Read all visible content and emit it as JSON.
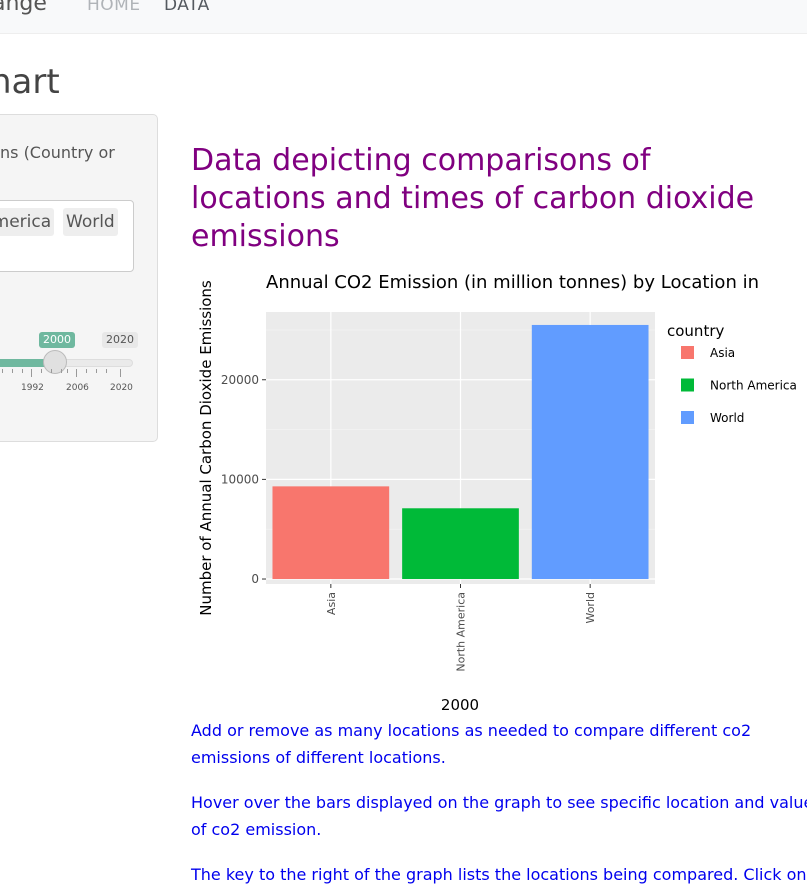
{
  "navbar": {
    "brand": "ange",
    "links": [
      {
        "label": "HOME"
      },
      {
        "label": "DATA"
      }
    ]
  },
  "page_title": "hart",
  "sidebar": {
    "label": "ns (Country or",
    "selected_locations": [
      "America",
      "World"
    ],
    "slider": {
      "current_label": "2000",
      "max_label": "2020",
      "value": 2000,
      "tick_labels": [
        "1992",
        "2006",
        "2020"
      ]
    }
  },
  "main": {
    "heading_lines": [
      "Data depicting comparisons of",
      "locations and times of carbon dioxide",
      "emissions"
    ],
    "info_paragraphs": [
      [
        "Add or remove as many locations as needed to compare different co2",
        "emissions of different locations."
      ],
      [
        "Hover over the bars displayed on the graph to see specific location and values",
        "of co2 emission."
      ],
      [
        "The key to the right of the graph lists the locations being compared. Click on"
      ]
    ]
  },
  "colors": {
    "heading": "#800080",
    "link_text": "#0000ee",
    "slider_accent": "#6fb89f",
    "panel_bg": "#ebebeb"
  },
  "chart_data": {
    "type": "bar",
    "title": "Annual CO2 Emission (in million tonnes) by Location in",
    "xlabel": "2000",
    "ylabel": "Number of Annual Carbon Dioxide Emissions",
    "categories": [
      "Asia",
      "North America",
      "World"
    ],
    "values": [
      9300,
      7100,
      25500
    ],
    "colors": [
      "#f8766d",
      "#00ba38",
      "#619cff"
    ],
    "ylim": [
      -500,
      26800
    ],
    "yticks": [
      0,
      10000,
      20000
    ],
    "legend": {
      "title": "country",
      "position": "right",
      "entries": [
        "Asia",
        "North America",
        "World"
      ]
    },
    "grid": true
  }
}
